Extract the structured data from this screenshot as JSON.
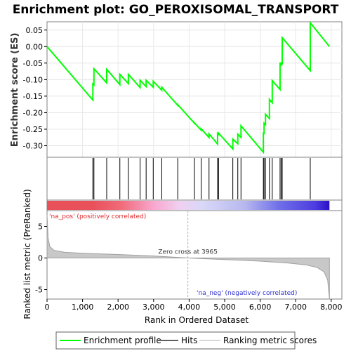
{
  "chart_data": {
    "type": "line",
    "title": "Enrichment plot: GO_PEROXISOMAL_TRANSPORT",
    "xlabel": "Rank in Ordered Dataset",
    "ylabel_top": "Enrichment score (ES)",
    "ylabel_bottom": "Ranked list metric (PreRanked)",
    "xlim": [
      0,
      8300
    ],
    "x_ticks": [
      0,
      1000,
      2000,
      3000,
      4000,
      5000,
      6000,
      7000,
      8000
    ],
    "x_tick_labels": [
      "0",
      "1,000",
      "2,000",
      "3,000",
      "4,000",
      "5,000",
      "6,000",
      "7,000",
      "8,000"
    ],
    "es_ylim": [
      -0.335,
      0.075
    ],
    "es_ticks": [
      0.05,
      0.0,
      -0.05,
      -0.1,
      -0.15,
      -0.2,
      -0.25,
      -0.3
    ],
    "es_tick_labels": [
      "0.05",
      "0.00",
      "-0.05",
      "-0.10",
      "-0.15",
      "-0.20",
      "-0.25",
      "-0.30"
    ],
    "metric_ylim": [
      -6.5,
      7.5
    ],
    "metric_ticks": [
      5,
      0,
      -5
    ],
    "metric_tick_labels": [
      "5",
      "0",
      "-5"
    ],
    "n_genes": 7950,
    "hits": [
      1290,
      1320,
      1680,
      2050,
      2290,
      2620,
      2790,
      2990,
      3230,
      3680,
      4150,
      4340,
      4560,
      4800,
      4830,
      5230,
      5370,
      5460,
      6090,
      6110,
      6150,
      6260,
      6340,
      6560,
      6590,
      6620,
      7410
    ],
    "es_points": [
      [
        0,
        0.0
      ],
      [
        1290,
        -0.162
      ],
      [
        1290,
        -0.113
      ],
      [
        1320,
        -0.116
      ],
      [
        1320,
        -0.067
      ],
      [
        1680,
        -0.11
      ],
      [
        1680,
        -0.069
      ],
      [
        2050,
        -0.115
      ],
      [
        2050,
        -0.084
      ],
      [
        2290,
        -0.112
      ],
      [
        2290,
        -0.084
      ],
      [
        2620,
        -0.124
      ],
      [
        2620,
        -0.102
      ],
      [
        2790,
        -0.121
      ],
      [
        2790,
        -0.102
      ],
      [
        2990,
        -0.123
      ],
      [
        2990,
        -0.105
      ],
      [
        3230,
        -0.132
      ],
      [
        3230,
        -0.123
      ],
      [
        3680,
        -0.178
      ],
      [
        3680,
        -0.176
      ],
      [
        4150,
        -0.232
      ],
      [
        4150,
        -0.231
      ],
      [
        4340,
        -0.253
      ],
      [
        4340,
        -0.249
      ],
      [
        4560,
        -0.275
      ],
      [
        4560,
        -0.264
      ],
      [
        4800,
        -0.295
      ],
      [
        4800,
        -0.263
      ],
      [
        4830,
        -0.266
      ],
      [
        4830,
        -0.262
      ],
      [
        5230,
        -0.31
      ],
      [
        5230,
        -0.28
      ],
      [
        5370,
        -0.294
      ],
      [
        5370,
        -0.265
      ],
      [
        5460,
        -0.275
      ],
      [
        5460,
        -0.24
      ],
      [
        6090,
        -0.32
      ],
      [
        6090,
        -0.262
      ],
      [
        6110,
        -0.263
      ],
      [
        6110,
        -0.232
      ],
      [
        6150,
        -0.236
      ],
      [
        6150,
        -0.205
      ],
      [
        6260,
        -0.218
      ],
      [
        6260,
        -0.16
      ],
      [
        6340,
        -0.17
      ],
      [
        6340,
        -0.103
      ],
      [
        6560,
        -0.13
      ],
      [
        6560,
        -0.052
      ],
      [
        6590,
        -0.055
      ],
      [
        6590,
        -0.05
      ],
      [
        6620,
        -0.052
      ],
      [
        6620,
        0.027
      ],
      [
        7410,
        -0.073
      ],
      [
        7410,
        0.072
      ],
      [
        7950,
        0.0
      ]
    ],
    "metric_points": [
      [
        0,
        6.8
      ],
      [
        30,
        3.2
      ],
      [
        80,
        1.8
      ],
      [
        200,
        1.2
      ],
      [
        500,
        0.9
      ],
      [
        1000,
        0.75
      ],
      [
        2000,
        0.55
      ],
      [
        3000,
        0.32
      ],
      [
        3965,
        0.0
      ],
      [
        5000,
        -0.25
      ],
      [
        6000,
        -0.5
      ],
      [
        6800,
        -0.8
      ],
      [
        7300,
        -1.1
      ],
      [
        7600,
        -1.5
      ],
      [
        7800,
        -2.2
      ],
      [
        7900,
        -3.5
      ],
      [
        7950,
        -6.5
      ]
    ],
    "zero_cross_rank": 3965,
    "annotations": {
      "zero_cross": "Zero cross at 3965",
      "pos_label": "'na_pos' (positively correlated)",
      "neg_label": "'na_neg' (negatively correlated)"
    },
    "legend": {
      "items": [
        "Enrichment profile",
        "Hits",
        "Ranking metric scores"
      ],
      "position": "bottom"
    },
    "colors": {
      "es_line": "#00ff00",
      "hits": "#000000",
      "metric_fill": "#c8c8c8",
      "metric_edge": "#a0a0a0",
      "pos_text": "#e0282a",
      "neg_text": "#3030d0",
      "zero_line": "#b0b0b0"
    }
  }
}
